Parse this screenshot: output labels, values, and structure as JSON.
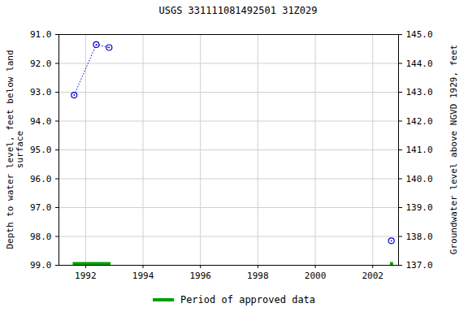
{
  "chart_data": {
    "type": "scatter",
    "title": "USGS 331111081492501 31Z029",
    "y_label": "Depth to water level, feet below land surface",
    "y2_label": "Groundwater level above NGVD 1929, feet",
    "x": [
      1991.6,
      1992.37,
      1992.82,
      2002.65
    ],
    "series": [
      {
        "values": [
          93.1,
          91.35,
          91.45,
          98.15
        ],
        "color": "#0000cc",
        "marker": "circle",
        "line_style": "dotted"
      }
    ],
    "approved_periods": {
      "name": "Period of approved data",
      "color": "#00a000",
      "x1": [
        1991.55,
        2002.6
      ],
      "x2": [
        1992.87,
        2002.71
      ]
    },
    "xlim": [
      1991.07,
      2002.9
    ],
    "xticks": [
      1992,
      1994,
      1996,
      1998,
      2000,
      2002
    ],
    "ylim": [
      99,
      91
    ],
    "yticks": [
      {
        "value": 91,
        "label": "91.0"
      },
      {
        "value": 92,
        "label": "92.0"
      },
      {
        "value": 93,
        "label": "93.0"
      },
      {
        "value": 94,
        "label": "94.0"
      },
      {
        "value": 95,
        "label": "95.0"
      },
      {
        "value": 96,
        "label": "96.0"
      },
      {
        "value": 97,
        "label": "97.0"
      },
      {
        "value": 98,
        "label": "98.0"
      },
      {
        "value": 99,
        "label": "99.0"
      }
    ],
    "y2lim": [
      137,
      145
    ],
    "y2ticks": [
      {
        "value": 137,
        "label": "137.0"
      },
      {
        "value": 138,
        "label": "138.0"
      },
      {
        "value": 139,
        "label": "139.0"
      },
      {
        "value": 140,
        "label": "140.0"
      },
      {
        "value": 141,
        "label": "141.0"
      },
      {
        "value": 142,
        "label": "142.0"
      },
      {
        "value": 143,
        "label": "143.0"
      },
      {
        "value": 144,
        "label": "144.0"
      },
      {
        "value": 145,
        "label": "145.0"
      }
    ],
    "grid": true,
    "legend": "bottom"
  }
}
